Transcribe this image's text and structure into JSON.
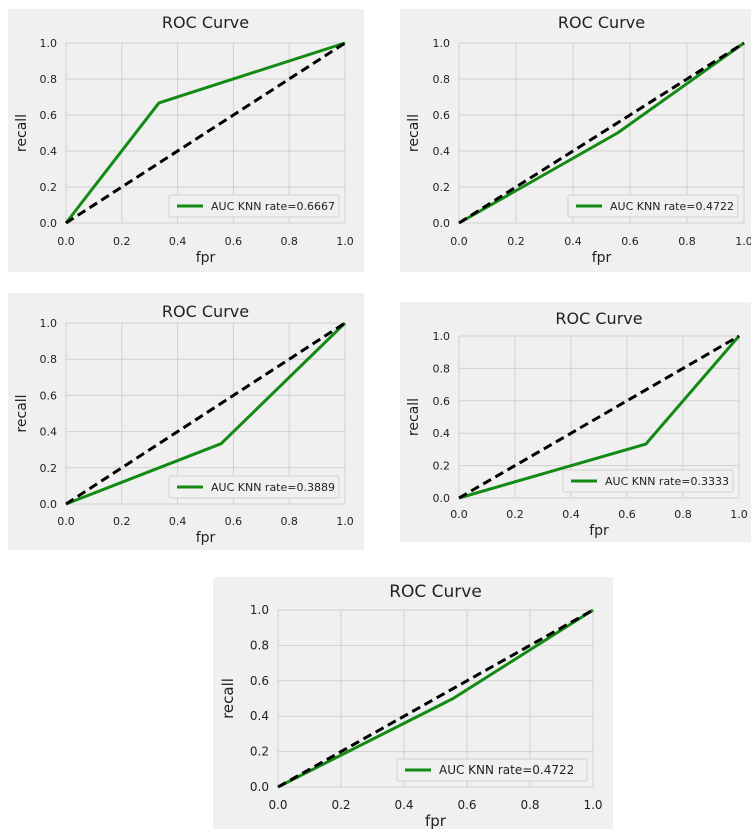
{
  "chart_data": [
    {
      "type": "line",
      "title": "ROC Curve",
      "xlabel": "fpr",
      "ylabel": "recall",
      "xlim": [
        0,
        1
      ],
      "ylim": [
        0,
        1
      ],
      "grid": true,
      "legend_position": "lower-right",
      "x_ticks": [
        "0.0",
        "0.2",
        "0.4",
        "0.6",
        "0.8",
        "1.0"
      ],
      "y_ticks": [
        "0.0",
        "0.2",
        "0.4",
        "0.6",
        "0.8",
        "1.0"
      ],
      "series": [
        {
          "name": "AUC KNN rate=0.6667",
          "color": "#138a13",
          "style": "solid",
          "x": [
            0,
            0.333,
            1
          ],
          "y": [
            0,
            0.667,
            1
          ]
        },
        {
          "color": "#000000",
          "style": "dashed",
          "x": [
            0,
            1
          ],
          "y": [
            0,
            1
          ]
        }
      ]
    },
    {
      "type": "line",
      "title": "ROC Curve",
      "xlabel": "fpr",
      "ylabel": "recall",
      "xlim": [
        0,
        1
      ],
      "ylim": [
        0,
        1
      ],
      "grid": true,
      "legend_position": "lower-right",
      "x_ticks": [
        "0.0",
        "0.2",
        "0.4",
        "0.6",
        "0.8",
        "1.0"
      ],
      "y_ticks": [
        "0.0",
        "0.2",
        "0.4",
        "0.6",
        "0.8",
        "1.0"
      ],
      "series": [
        {
          "name": "AUC KNN rate=0.4722",
          "color": "#138a13",
          "style": "solid",
          "x": [
            0,
            0.556,
            1
          ],
          "y": [
            0,
            0.5,
            1
          ]
        },
        {
          "color": "#000000",
          "style": "dashed",
          "x": [
            0,
            1
          ],
          "y": [
            0,
            1
          ]
        }
      ]
    },
    {
      "type": "line",
      "title": "ROC Curve",
      "xlabel": "fpr",
      "ylabel": "recall",
      "xlim": [
        0,
        1
      ],
      "ylim": [
        0,
        1
      ],
      "grid": true,
      "legend_position": "lower-right",
      "x_ticks": [
        "0.0",
        "0.2",
        "0.4",
        "0.6",
        "0.8",
        "1.0"
      ],
      "y_ticks": [
        "0.0",
        "0.2",
        "0.4",
        "0.6",
        "0.8",
        "1.0"
      ],
      "series": [
        {
          "name": "AUC KNN rate=0.3889",
          "color": "#138a13",
          "style": "solid",
          "x": [
            0,
            0.556,
            1
          ],
          "y": [
            0,
            0.333,
            1
          ]
        },
        {
          "color": "#000000",
          "style": "dashed",
          "x": [
            0,
            1
          ],
          "y": [
            0,
            1
          ]
        }
      ]
    },
    {
      "type": "line",
      "title": "ROC Curve",
      "xlabel": "fpr",
      "ylabel": "recall",
      "xlim": [
        0,
        1
      ],
      "ylim": [
        0,
        1
      ],
      "grid": true,
      "legend_position": "lower-right",
      "x_ticks": [
        "0.0",
        "0.2",
        "0.4",
        "0.6",
        "0.8",
        "1.0"
      ],
      "y_ticks": [
        "0.0",
        "0.2",
        "0.4",
        "0.6",
        "0.8",
        "1.0"
      ],
      "series": [
        {
          "name": "AUC KNN rate=0.3333",
          "color": "#138a13",
          "style": "solid",
          "x": [
            0,
            0.667,
            1
          ],
          "y": [
            0,
            0.333,
            1
          ]
        },
        {
          "color": "#000000",
          "style": "dashed",
          "x": [
            0,
            1
          ],
          "y": [
            0,
            1
          ]
        }
      ]
    },
    {
      "type": "line",
      "title": "ROC Curve",
      "xlabel": "fpr",
      "ylabel": "recall",
      "xlim": [
        0,
        1
      ],
      "ylim": [
        0,
        1
      ],
      "grid": true,
      "legend_position": "lower-right",
      "x_ticks": [
        "0.0",
        "0.2",
        "0.4",
        "0.6",
        "0.8",
        "1.0"
      ],
      "y_ticks": [
        "0.0",
        "0.2",
        "0.4",
        "0.6",
        "0.8",
        "1.0"
      ],
      "series": [
        {
          "name": "AUC KNN rate=0.4722",
          "color": "#138a13",
          "style": "solid",
          "x": [
            0,
            0.556,
            1
          ],
          "y": [
            0,
            0.5,
            1
          ]
        },
        {
          "color": "#000000",
          "style": "dashed",
          "x": [
            0,
            1
          ],
          "y": [
            0,
            1
          ]
        }
      ]
    }
  ]
}
